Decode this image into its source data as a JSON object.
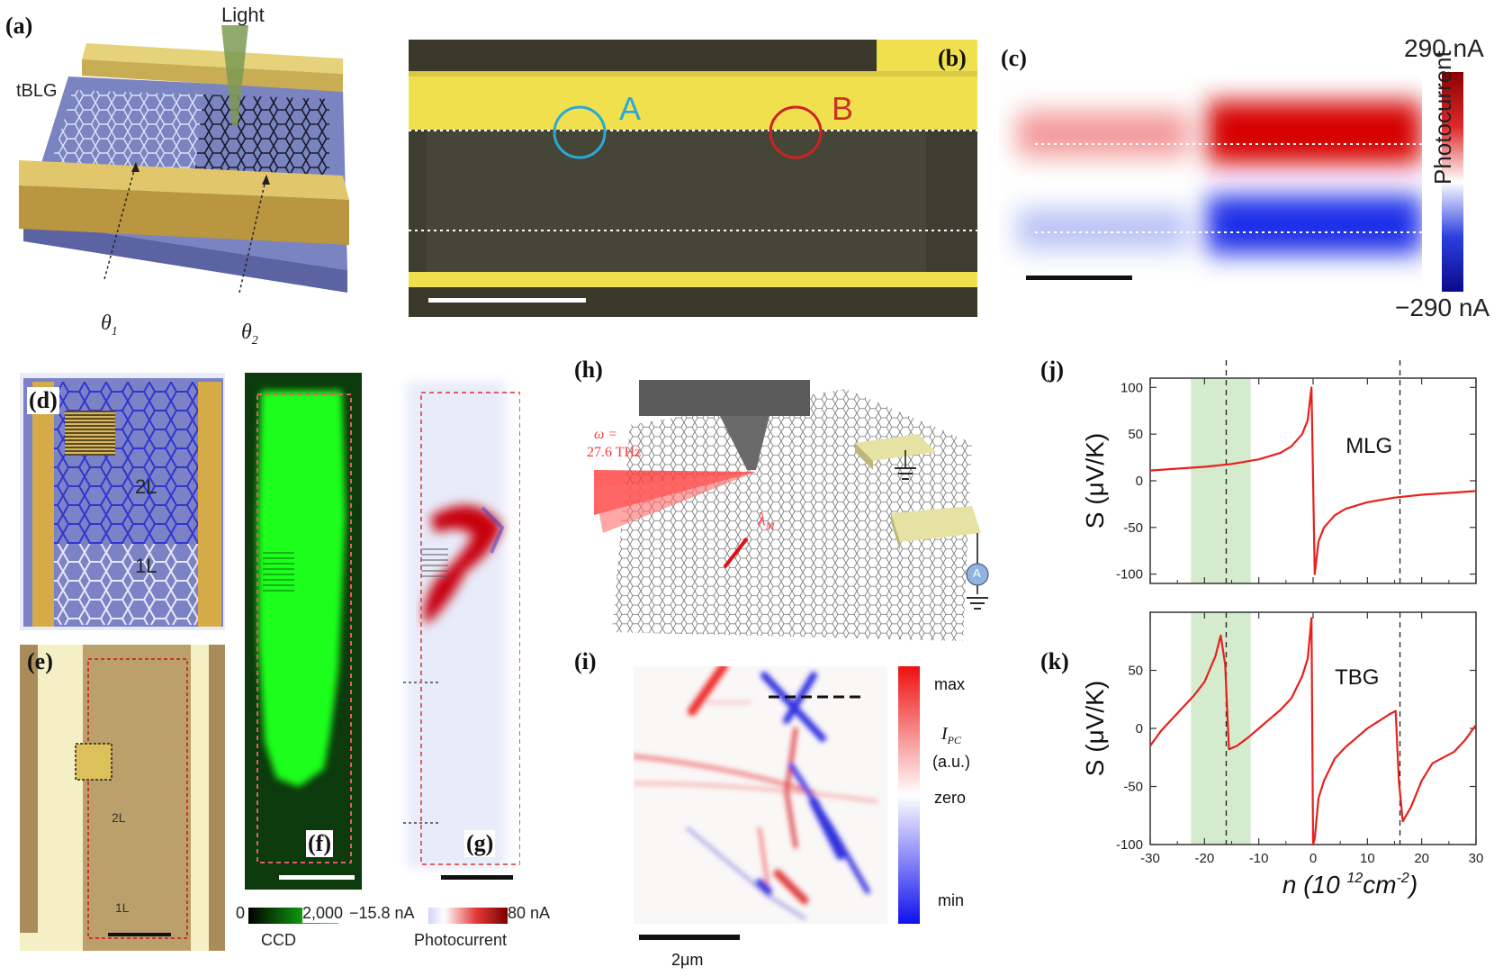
{
  "labels": {
    "a": "(a)",
    "b": "(b)",
    "c": "(c)",
    "d": "(d)",
    "e": "(e)",
    "f": "(f)",
    "g": "(g)",
    "h": "(h)",
    "i": "(i)",
    "j": "(j)",
    "k": "(k)"
  },
  "panel_a": {
    "light": "Light",
    "tblg": "tBLG",
    "theta1": "θ",
    "theta1_sub": "1",
    "theta2": "θ",
    "theta2_sub": "2"
  },
  "panel_b": {
    "point_a": "A",
    "point_b": "B",
    "color_a": "#2aa9d8",
    "color_b": "#cc2222"
  },
  "panel_c": {
    "max_label": "290 nA",
    "min_label": "−290 nA",
    "axis_label": "Photocurrent"
  },
  "panel_d": {
    "region_2l": "2L",
    "region_1l": "1L"
  },
  "panel_e": {
    "region_2l": "2L",
    "region_1l": "1L"
  },
  "panel_fg_colorbars": {
    "ccd_min": "0",
    "ccd_max": "2,000",
    "ccd_label": "CCD",
    "pc_min": "−15.8 nA",
    "pc_max": "80 nA",
    "pc_label": "Photocurrent"
  },
  "panel_h": {
    "freq_line1": "ω =",
    "freq_line2": "27.6 THz",
    "lambda": "λ",
    "lambda_sub": "M",
    "ammeter": "A"
  },
  "panel_i": {
    "max": "max",
    "ipc": "I",
    "ipc_sub": "PC",
    "au": "(a.u.)",
    "zero": "zero",
    "min": "min",
    "scale": "2μm"
  },
  "chart_data": [
    {
      "type": "line",
      "name_label": "MLG",
      "ylabel": "S (μV/K)",
      "xlim": [
        -30,
        30
      ],
      "ylim": [
        -110,
        110
      ],
      "yticks": [
        100,
        50,
        0,
        -50,
        -100
      ],
      "xticks": [
        -30,
        -20,
        -10,
        0,
        10,
        20,
        30
      ],
      "shaded_band": [
        -22.5,
        -11.5
      ],
      "dashed_lines": [
        -16,
        16
      ],
      "series": [
        {
          "x": [
            -30,
            -25,
            -20,
            -15,
            -10,
            -6,
            -4,
            -2,
            -1,
            -0.3,
            0,
            0.3,
            1,
            2,
            4,
            6,
            10,
            15,
            20,
            25,
            30
          ],
          "y": [
            11,
            13,
            15,
            18,
            23,
            30,
            37,
            50,
            65,
            100,
            0,
            -100,
            -65,
            -50,
            -37,
            -30,
            -23,
            -18,
            -15,
            -13,
            -11
          ]
        }
      ]
    },
    {
      "type": "line",
      "name_label": "TBG",
      "ylabel": "S (μV/K)",
      "xlabel": "n (10",
      "xlabel_sup": "12",
      "xlabel_unit": "cm",
      "xlabel_unit_sup": "-2",
      "xlabel_end": ")",
      "xlim": [
        -30,
        30
      ],
      "ylim": [
        -100,
        100
      ],
      "yticks": [
        50,
        0,
        -50,
        -100
      ],
      "xticks": [
        -30,
        -20,
        -10,
        0,
        10,
        20,
        30
      ],
      "xticklabels": [
        "-30",
        "-20",
        "-10",
        "0",
        "10",
        "20",
        "30"
      ],
      "shaded_band": [
        -22.5,
        -11.5
      ],
      "dashed_lines": [
        -16,
        16
      ],
      "series": [
        {
          "x": [
            -30,
            -28,
            -26,
            -24,
            -22,
            -20,
            -18,
            -17,
            -16.2,
            -15.5,
            -14,
            -12,
            -10,
            -8,
            -6,
            -4,
            -2,
            -1,
            -0.3,
            0,
            0.3,
            1,
            2,
            4,
            6,
            8,
            10,
            12,
            14,
            15.2,
            15.8,
            16.5,
            18,
            20,
            22,
            24,
            26,
            28,
            30
          ],
          "y": [
            -15,
            -2,
            8,
            18,
            28,
            40,
            62,
            80,
            55,
            -18,
            -15,
            -8,
            0,
            8,
            16,
            26,
            45,
            60,
            95,
            -100,
            -95,
            -60,
            -45,
            -26,
            -16,
            -8,
            0,
            6,
            12,
            15,
            -45,
            -80,
            -68,
            -45,
            -30,
            -25,
            -20,
            -10,
            3
          ]
        }
      ]
    }
  ]
}
